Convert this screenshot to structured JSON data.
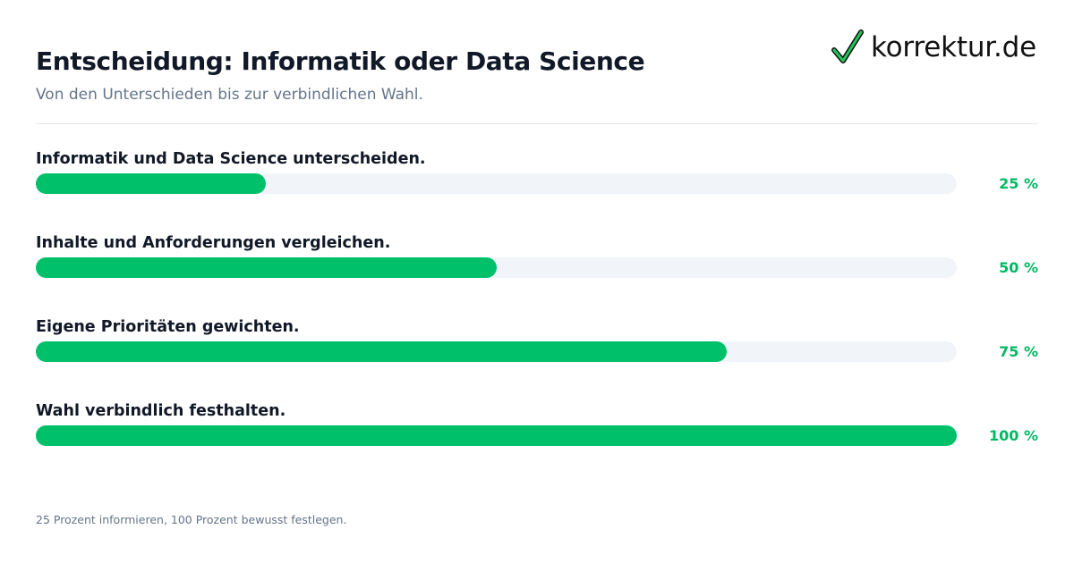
{
  "header": {
    "title": "Entscheidung: Informatik oder Data Science",
    "subtitle": "Von den Unterschieden bis zur verbindlichen Wahl."
  },
  "logo": {
    "text": "korrektur.de",
    "icon": "check-icon",
    "check_color": "#22c55e"
  },
  "colors": {
    "accent": "#00c16a",
    "track": "#f1f5f9",
    "percent_text": "#00b862"
  },
  "chart_data": {
    "type": "bar",
    "orientation": "horizontal",
    "categories": [
      "Informatik und Data Science unterscheiden.",
      "Inhalte und Anforderungen vergleichen.",
      "Eigene Prioritäten gewichten.",
      "Wahl verbindlich festhalten."
    ],
    "values": [
      25,
      50,
      75,
      100
    ],
    "value_labels": [
      "25 %",
      "50 %",
      "75 %",
      "100 %"
    ],
    "xlim": [
      0,
      100
    ],
    "grid": false
  },
  "footnote": "25 Prozent informieren, 100 Prozent bewusst festlegen."
}
